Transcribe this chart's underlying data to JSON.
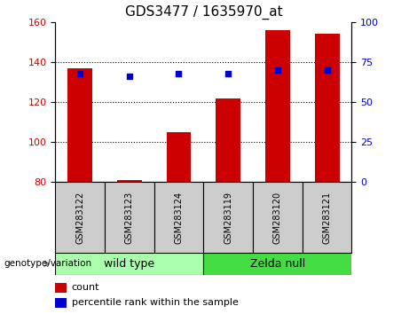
{
  "title": "GDS3477 / 1635970_at",
  "samples": [
    "GSM283122",
    "GSM283123",
    "GSM283124",
    "GSM283119",
    "GSM283120",
    "GSM283121"
  ],
  "bar_values": [
    137,
    81,
    105,
    122,
    156,
    154
  ],
  "bar_base": 80,
  "percentile_raw": [
    68,
    66,
    68,
    68,
    70,
    70
  ],
  "ylim_left": [
    80,
    160
  ],
  "ylim_right": [
    0,
    100
  ],
  "yticks_left": [
    80,
    100,
    120,
    140,
    160
  ],
  "yticks_right": [
    0,
    25,
    50,
    75,
    100
  ],
  "bar_color": "#cc0000",
  "percentile_color": "#0000cc",
  "group1_label": "wild type",
  "group2_label": "Zelda null",
  "group1_color": "#aaffaa",
  "group2_color": "#44dd44",
  "sample_bg": "#cccccc",
  "legend_count": "count",
  "legend_percentile": "percentile rank within the sample",
  "genotype_label": "genotype/variation",
  "grid_lines": [
    100,
    120,
    140
  ],
  "bar_width": 0.5
}
